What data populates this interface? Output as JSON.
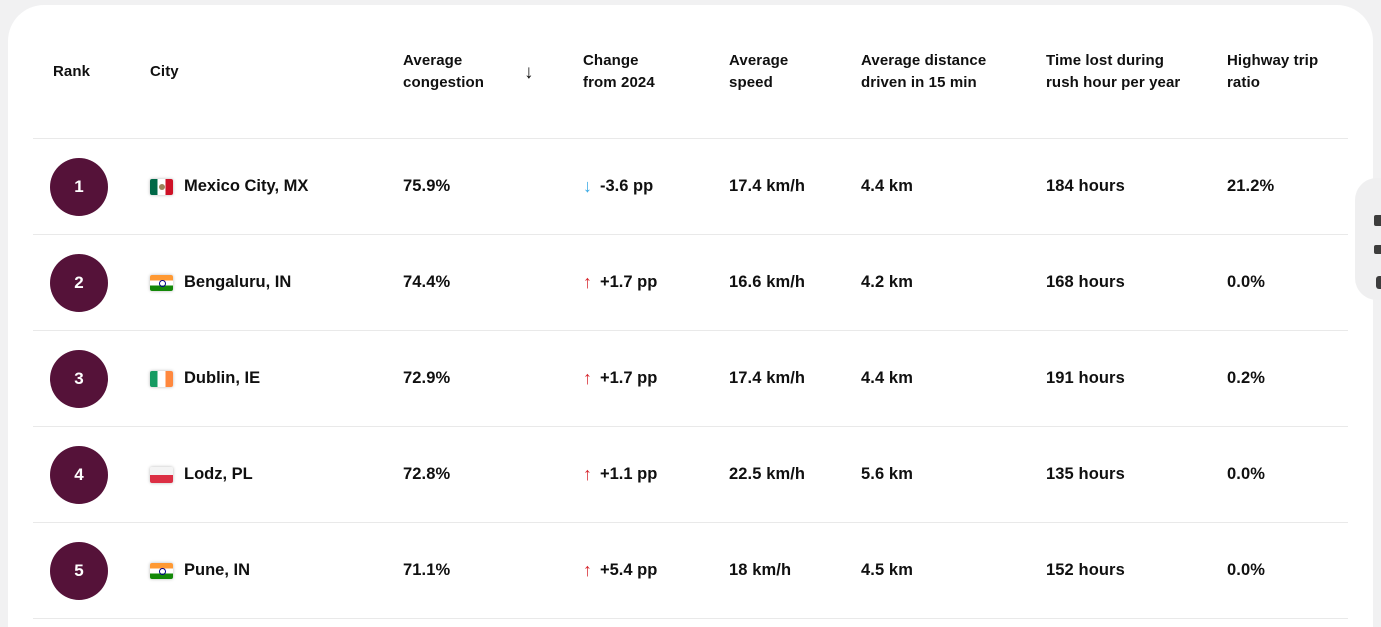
{
  "colors": {
    "page": "#f1f1f2",
    "card": "#ffffff",
    "badge": "#551239",
    "up": "#d7282f",
    "down": "#38a9e4",
    "divider": "#e9e9e9"
  },
  "table": {
    "headers": {
      "rank": "Rank",
      "city": "City",
      "congestion": "Average congestion",
      "sort_icon": "↓",
      "change": "Change from 2024",
      "speed": "Average speed",
      "distance": "Average distance driven in 15 min",
      "time_lost": "Time lost during rush hour per year",
      "highway": "Highway trip ratio"
    },
    "rows": [
      {
        "rank": "1",
        "flag": "mexico-flag",
        "city": "Mexico City, MX",
        "congestion": "75.9%",
        "change_icon": "↓",
        "change": "-3.6 pp",
        "speed": "17.4 km/h",
        "distance": "4.4 km",
        "time_lost": "184 hours",
        "highway": "21.2%"
      },
      {
        "rank": "2",
        "flag": "india-flag",
        "city": "Bengaluru, IN",
        "congestion": "74.4%",
        "change_icon": "↑",
        "change": "+1.7 pp",
        "speed": "16.6 km/h",
        "distance": "4.2 km",
        "time_lost": "168 hours",
        "highway": "0.0%"
      },
      {
        "rank": "3",
        "flag": "ireland-flag",
        "city": "Dublin, IE",
        "congestion": "72.9%",
        "change_icon": "↑",
        "change": "+1.7 pp",
        "speed": "17.4 km/h",
        "distance": "4.4 km",
        "time_lost": "191 hours",
        "highway": "0.2%"
      },
      {
        "rank": "4",
        "flag": "poland-flag",
        "city": "Lodz, PL",
        "congestion": "72.8%",
        "change_icon": "↑",
        "change": "+1.1 pp",
        "speed": "22.5 km/h",
        "distance": "5.6 km",
        "time_lost": "135 hours",
        "highway": "0.0%"
      },
      {
        "rank": "5",
        "flag": "india-flag",
        "city": "Pune, IN",
        "congestion": "71.1%",
        "change_icon": "↑",
        "change": "+5.4 pp",
        "speed": "18 km/h",
        "distance": "4.5 km",
        "time_lost": "152 hours",
        "highway": "0.0%"
      }
    ]
  }
}
